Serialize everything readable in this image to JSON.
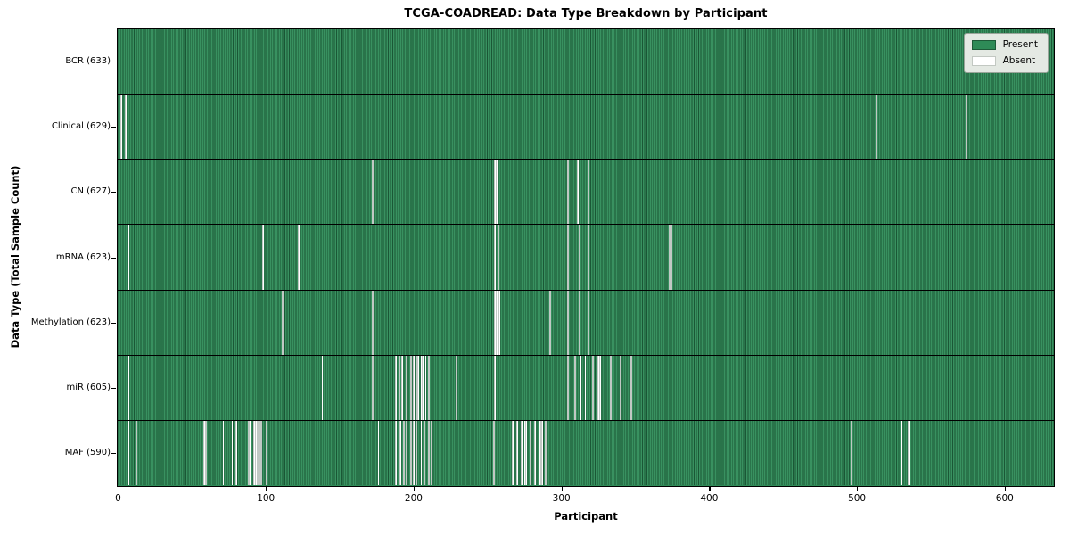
{
  "chart_data": {
    "type": "heatmap",
    "title": "TCGA-COADREAD: Data Type Breakdown by Participant",
    "xlabel": "Participant",
    "ylabel": "Data Type (Total Sample Count)",
    "participants_total": 633,
    "x_ticks": [
      0,
      100,
      200,
      300,
      400,
      500,
      600
    ],
    "x_range": [
      0,
      633
    ],
    "grid": false,
    "legend_position": "upper right",
    "legend_entries": [
      {
        "label": "Present",
        "color_key": "present"
      },
      {
        "label": "Absent",
        "color_key": "absent"
      }
    ],
    "colors": {
      "present": "#2e8b57",
      "absent": "#ffffff",
      "row_separator": "#000000",
      "legend_background": "#e4e9e3"
    },
    "rows": [
      {
        "name": "bcr",
        "label": "BCR (633)",
        "present_count": 633,
        "absent_participants": []
      },
      {
        "name": "clinical",
        "label": "Clinical (629)",
        "present_count": 629,
        "absent_participants": [
          2,
          5,
          513,
          574
        ]
      },
      {
        "name": "cn",
        "label": "CN (627)",
        "present_count": 627,
        "absent_participants": [
          172,
          255,
          256,
          304,
          311,
          318
        ]
      },
      {
        "name": "mrna",
        "label": "mRNA (623)",
        "present_count": 623,
        "absent_participants": [
          7,
          98,
          122,
          255,
          257,
          304,
          312,
          318,
          373,
          374
        ]
      },
      {
        "name": "methylation",
        "label": "Methylation (623)",
        "present_count": 623,
        "absent_participants": [
          111,
          172,
          173,
          255,
          256,
          258,
          292,
          304,
          312,
          318
        ]
      },
      {
        "name": "mir",
        "label": "miR (605)",
        "present_count": 605,
        "absent_participants": [
          7,
          138,
          172,
          188,
          190,
          192,
          195,
          198,
          200,
          202,
          203,
          205,
          206,
          208,
          210,
          229,
          255,
          304,
          309,
          313,
          316,
          321,
          324,
          325,
          326,
          333,
          340,
          347
        ]
      },
      {
        "name": "maf",
        "label": "MAF (590)",
        "present_count": 590,
        "absent_participants": [
          7,
          12,
          58,
          59,
          71,
          77,
          80,
          88,
          89,
          92,
          93,
          94,
          95,
          96,
          97,
          100,
          176,
          188,
          191,
          193,
          195,
          198,
          200,
          202,
          205,
          207,
          210,
          212,
          254,
          267,
          270,
          273,
          275,
          276,
          279,
          282,
          285,
          286,
          287,
          289,
          496,
          530,
          535
        ]
      }
    ]
  }
}
